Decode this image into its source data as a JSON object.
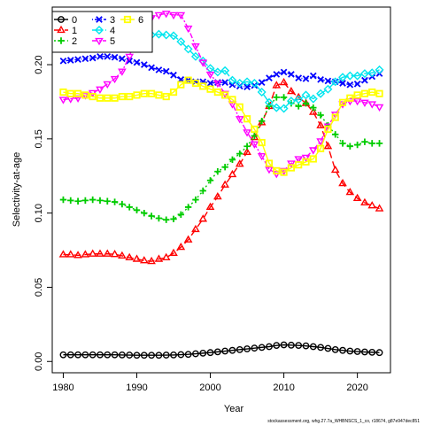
{
  "chart_data": {
    "type": "line",
    "xlabel": "Year",
    "ylabel": "Selectivity-at-age",
    "xlim": [
      1978.5,
      2024.5
    ],
    "ylim": [
      -0.0076,
      0.2388
    ],
    "xticks": [
      1980,
      1990,
      2000,
      2010,
      2020
    ],
    "yticks": [
      0.0,
      0.05,
      0.1,
      0.15,
      0.2
    ],
    "ytick_labels": [
      "0.00",
      "0.05",
      "0.10",
      "0.15",
      "0.20"
    ],
    "legend_position": "top-left",
    "grid": false,
    "footnote": "stockassessment.org, whg.27.7a_WHBNSCS_1_co, r18674, g87e947dec851",
    "years": [
      1980,
      1981,
      1982,
      1983,
      1984,
      1985,
      1986,
      1987,
      1988,
      1989,
      1990,
      1991,
      1992,
      1993,
      1994,
      1995,
      1996,
      1997,
      1998,
      1999,
      2000,
      2001,
      2002,
      2003,
      2004,
      2005,
      2006,
      2007,
      2008,
      2009,
      2010,
      2011,
      2012,
      2013,
      2014,
      2015,
      2016,
      2017,
      2018,
      2019,
      2020,
      2021,
      2022,
      2023
    ],
    "series": [
      {
        "name": "0",
        "color": "#000000",
        "marker": "circle",
        "dash": "solid",
        "values": [
          0.0045,
          0.0045,
          0.0045,
          0.0045,
          0.0045,
          0.0045,
          0.0045,
          0.0045,
          0.0044,
          0.0043,
          0.0042,
          0.0042,
          0.0042,
          0.0042,
          0.0043,
          0.0044,
          0.0046,
          0.0048,
          0.0052,
          0.0056,
          0.006,
          0.0065,
          0.007,
          0.0075,
          0.008,
          0.0085,
          0.009,
          0.0095,
          0.01,
          0.0108,
          0.0112,
          0.011,
          0.0108,
          0.0105,
          0.01,
          0.0095,
          0.0088,
          0.008,
          0.0075,
          0.007,
          0.0067,
          0.0064,
          0.0062,
          0.006
        ]
      },
      {
        "name": "1",
        "color": "#ff0000",
        "marker": "triangle-up",
        "dash": "8,4",
        "values": [
          0.072,
          0.072,
          0.0715,
          0.072,
          0.0725,
          0.0725,
          0.0725,
          0.0722,
          0.0712,
          0.07,
          0.069,
          0.068,
          0.0675,
          0.069,
          0.07,
          0.073,
          0.077,
          0.082,
          0.089,
          0.096,
          0.104,
          0.111,
          0.119,
          0.126,
          0.133,
          0.141,
          0.151,
          0.161,
          0.172,
          0.186,
          0.188,
          0.182,
          0.178,
          0.174,
          0.168,
          0.159,
          0.145,
          0.129,
          0.12,
          0.114,
          0.11,
          0.107,
          0.105,
          0.103
        ]
      },
      {
        "name": "2",
        "color": "#00cc00",
        "marker": "plus",
        "dash": "2,3",
        "values": [
          0.109,
          0.1085,
          0.108,
          0.1085,
          0.109,
          0.1085,
          0.108,
          0.1075,
          0.106,
          0.104,
          0.102,
          0.1,
          0.098,
          0.0965,
          0.0955,
          0.096,
          0.099,
          0.104,
          0.109,
          0.115,
          0.122,
          0.128,
          0.131,
          0.136,
          0.14,
          0.145,
          0.152,
          0.162,
          0.172,
          0.178,
          0.178,
          0.174,
          0.172,
          0.174,
          0.171,
          0.166,
          0.159,
          0.153,
          0.147,
          0.145,
          0.146,
          0.148,
          0.147,
          0.147
        ]
      },
      {
        "name": "3",
        "color": "#0000ff",
        "marker": "x",
        "dash": "1,2,5,2",
        "values": [
          0.2025,
          0.203,
          0.2035,
          0.204,
          0.2045,
          0.2055,
          0.2055,
          0.205,
          0.204,
          0.2025,
          0.2015,
          0.2,
          0.198,
          0.1965,
          0.1955,
          0.193,
          0.19,
          0.1895,
          0.1885,
          0.1885,
          0.1875,
          0.188,
          0.188,
          0.1865,
          0.1855,
          0.185,
          0.186,
          0.188,
          0.191,
          0.1935,
          0.195,
          0.1935,
          0.191,
          0.1905,
          0.1925,
          0.19,
          0.189,
          0.1885,
          0.1875,
          0.1865,
          0.187,
          0.1895,
          0.192,
          0.194
        ]
      },
      {
        "name": "4",
        "color": "#00e5ee",
        "marker": "diamond",
        "dash": "12,3",
        "values": [
          0.2135,
          0.2135,
          0.2145,
          0.2145,
          0.215,
          0.216,
          0.2165,
          0.217,
          0.2175,
          0.218,
          0.219,
          0.2195,
          0.22,
          0.2205,
          0.22,
          0.2195,
          0.2155,
          0.2105,
          0.2055,
          0.2025,
          0.1975,
          0.195,
          0.196,
          0.1895,
          0.1875,
          0.1885,
          0.1875,
          0.1815,
          0.1745,
          0.171,
          0.1705,
          0.1755,
          0.1765,
          0.1795,
          0.177,
          0.1805,
          0.1835,
          0.1885,
          0.1915,
          0.1925,
          0.1925,
          0.194,
          0.1945,
          0.1965
        ]
      },
      {
        "name": "5",
        "color": "#ff00ff",
        "marker": "triangle-down",
        "dash": "6,2,2,2",
        "values": [
          0.1765,
          0.177,
          0.1775,
          0.1795,
          0.181,
          0.1835,
          0.187,
          0.1905,
          0.1955,
          0.2055,
          0.2215,
          0.2285,
          0.2315,
          0.2335,
          0.2345,
          0.2335,
          0.2335,
          0.2245,
          0.2125,
          0.2015,
          0.1935,
          0.1875,
          0.1805,
          0.1735,
          0.1635,
          0.1545,
          0.1465,
          0.1385,
          0.1295,
          0.1265,
          0.1285,
          0.1335,
          0.1365,
          0.1375,
          0.1425,
          0.1485,
          0.1585,
          0.1665,
          0.1735,
          0.1755,
          0.1755,
          0.1745,
          0.1735,
          0.1715
        ]
      },
      {
        "name": "6",
        "color": "#ffff00",
        "marker": "square",
        "dash": "solid",
        "values": [
          0.1815,
          0.1805,
          0.1805,
          0.1795,
          0.1785,
          0.1775,
          0.1775,
          0.1775,
          0.1785,
          0.1785,
          0.1795,
          0.1805,
          0.1805,
          0.1795,
          0.1785,
          0.1815,
          0.1865,
          0.1895,
          0.1875,
          0.1855,
          0.1835,
          0.1815,
          0.1795,
          0.1765,
          0.1715,
          0.1635,
          0.1565,
          0.1475,
          0.1335,
          0.1285,
          0.1275,
          0.1305,
          0.1325,
          0.1345,
          0.1365,
          0.1435,
          0.1565,
          0.1645,
          0.1745,
          0.1775,
          0.1795,
          0.1805,
          0.1815,
          0.1805
        ]
      }
    ]
  }
}
